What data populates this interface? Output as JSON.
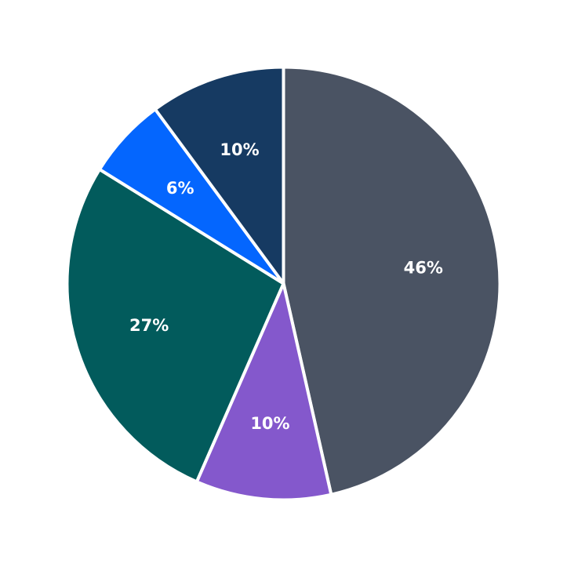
{
  "chart_data": {
    "type": "pie",
    "title": "",
    "start_angle_deg": 0,
    "direction": "clockwise",
    "slices": [
      {
        "value": 46,
        "label": "46%",
        "color": "#4a5363"
      },
      {
        "value": 10,
        "label": "10%",
        "color": "#8458cc"
      },
      {
        "value": 27,
        "label": "27%",
        "color": "#025b5c"
      },
      {
        "value": 6,
        "label": "6%",
        "color": "#0466fe"
      },
      {
        "value": 10,
        "label": "10%",
        "color": "#163a62"
      }
    ]
  }
}
